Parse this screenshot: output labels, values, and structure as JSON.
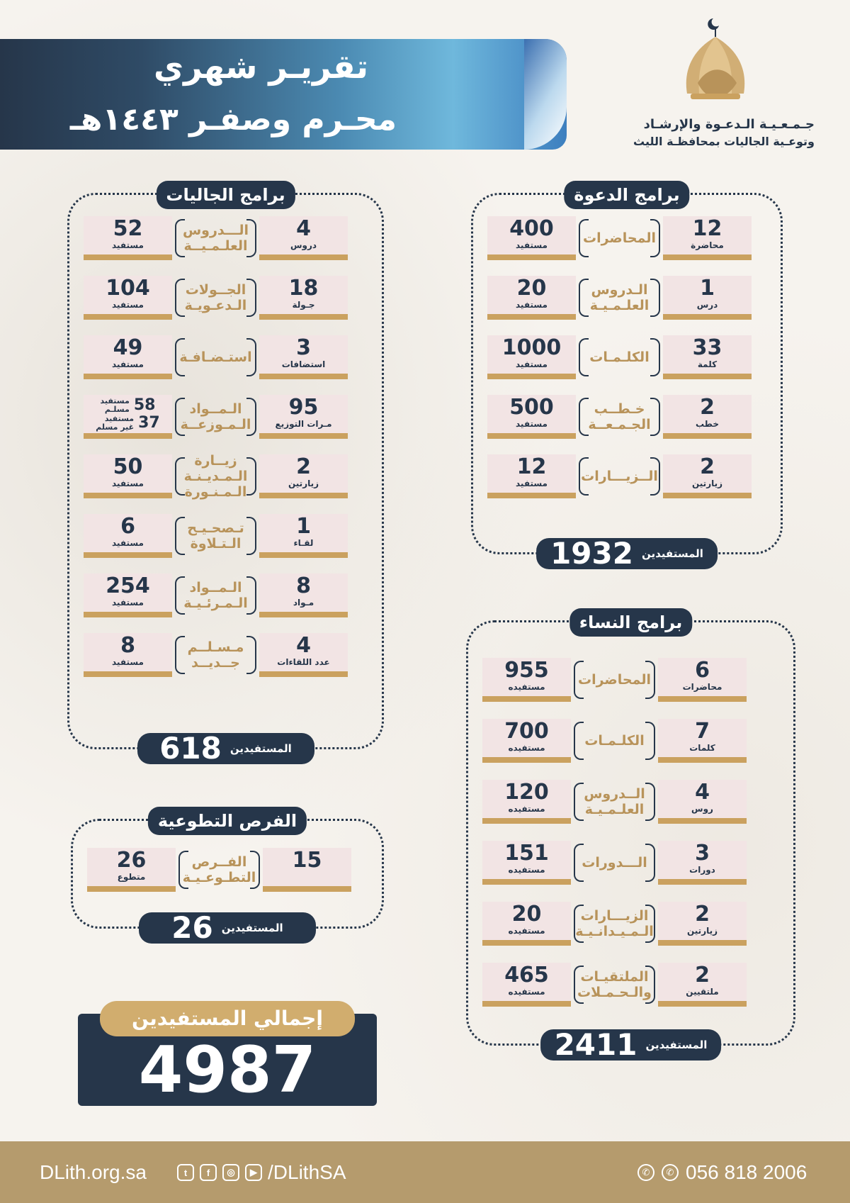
{
  "header": {
    "title": "تقريـر شهري",
    "subtitle": "محـرم وصفـر ١٤٤٣هـ",
    "org_line1": "جـمـعـيـة الـدعـوة والإرشـاد",
    "org_line2": "وتوعـية الجاليات بمحافظـة الليث"
  },
  "dawah": {
    "title": "برامج الدعوة",
    "total_label": "المستفيدين",
    "total": "1932",
    "rows": [
      {
        "count": "12",
        "count_unit": "محاضرة",
        "label": "المحاضرات",
        "benef": "400",
        "benef_unit": "مستفيد"
      },
      {
        "count": "1",
        "count_unit": "درس",
        "label": "الـدروس\nالعلـمـيـة",
        "benef": "20",
        "benef_unit": "مستفيد"
      },
      {
        "count": "33",
        "count_unit": "كلمة",
        "label": "الكلـمـات",
        "benef": "1000",
        "benef_unit": "مستفيد"
      },
      {
        "count": "2",
        "count_unit": "خطب",
        "label": "خـطــب\nالجـمـعــة",
        "benef": "500",
        "benef_unit": "مستفيد"
      },
      {
        "count": "2",
        "count_unit": "زيارتين",
        "label": "الــزيـــارات",
        "benef": "12",
        "benef_unit": "مستفيد"
      }
    ]
  },
  "communities": {
    "title": "برامج الجاليات",
    "total_label": "المستفيدين",
    "total": "618",
    "rows": [
      {
        "count": "4",
        "count_unit": "دروس",
        "label": "الـــدروس\nالعلـمـيــة",
        "benef": "52",
        "benef_unit": "مستفيد"
      },
      {
        "count": "18",
        "count_unit": "جـولة",
        "label": "الجــولات\nالـدعـويـة",
        "benef": "104",
        "benef_unit": "مستفيد"
      },
      {
        "count": "3",
        "count_unit": "استضافات",
        "label": "استـضـافـة",
        "benef": "49",
        "benef_unit": "مستفيد"
      },
      {
        "count": "95",
        "count_unit": "مـرات التوزيع",
        "label": "الـمــواد\nالـمـوزعــة",
        "split": [
          {
            "num": "58",
            "unit": "مستفيد\nمسلـم"
          },
          {
            "num": "37",
            "unit": "مستفيد\nغير مسلم"
          }
        ]
      },
      {
        "count": "2",
        "count_unit": "زيارتين",
        "label": "زيــارة\nالـمـديـنـة\nالـمـنـورة",
        "benef": "50",
        "benef_unit": "مستفيد"
      },
      {
        "count": "1",
        "count_unit": "لقـاء",
        "label": "تـصحـيـح\nالـتـلاوة",
        "benef": "6",
        "benef_unit": "مستفيد"
      },
      {
        "count": "8",
        "count_unit": "مـواد",
        "label": "الـمــواد\nالـمـرئـيـة",
        "benef": "254",
        "benef_unit": "مستفيد"
      },
      {
        "count": "4",
        "count_unit": "عدد اللقاءات",
        "label": "مـسـلــم\nجــديــد",
        "benef": "8",
        "benef_unit": "مستفيد"
      }
    ]
  },
  "volunteer": {
    "title": "الفرص التطوعية",
    "total_label": "المستفيدين",
    "total": "26",
    "rows": [
      {
        "count": "15",
        "count_unit": "",
        "label": "الفــرص\nالتطـوعـيـة",
        "benef": "26",
        "benef_unit": "متطوع"
      }
    ]
  },
  "women": {
    "title": "برامج النساء",
    "total_label": "المستفيدين",
    "total": "2411",
    "rows": [
      {
        "count": "6",
        "count_unit": "محاضرات",
        "label": "المحاضرات",
        "benef": "955",
        "benef_unit": "مستفيده"
      },
      {
        "count": "7",
        "count_unit": "كلمات",
        "label": "الكلـمـات",
        "benef": "700",
        "benef_unit": "مستفيده"
      },
      {
        "count": "4",
        "count_unit": "روس",
        "label": "الــدروس\nالعلـمـيـة",
        "benef": "120",
        "benef_unit": "مستفيده"
      },
      {
        "count": "3",
        "count_unit": "دورات",
        "label": "الـــدورات",
        "benef": "151",
        "benef_unit": "مستفيده"
      },
      {
        "count": "2",
        "count_unit": "زيارتين",
        "label": "الزيـــارات\nالـمـيـدانـيـة",
        "benef": "20",
        "benef_unit": "مستفيده"
      },
      {
        "count": "2",
        "count_unit": "ملتقيين",
        "label": "الملتقيـات\nوالـحـمـلات",
        "benef": "465",
        "benef_unit": "مستفيده"
      }
    ]
  },
  "grand_total": {
    "label": "إجمالي المستفيدين",
    "value": "4987"
  },
  "footer": {
    "website": "DLith.org.sa",
    "social_handle": "/DLithSA",
    "phone": "056 818 2006",
    "social_icons": [
      "twitter-icon",
      "facebook-icon",
      "instagram-icon",
      "youtube-icon"
    ]
  },
  "colors": {
    "navy": "#26364a",
    "gold": "#caa15f",
    "box_bg": "#f2e4e4",
    "label_gold": "#b8935a"
  }
}
